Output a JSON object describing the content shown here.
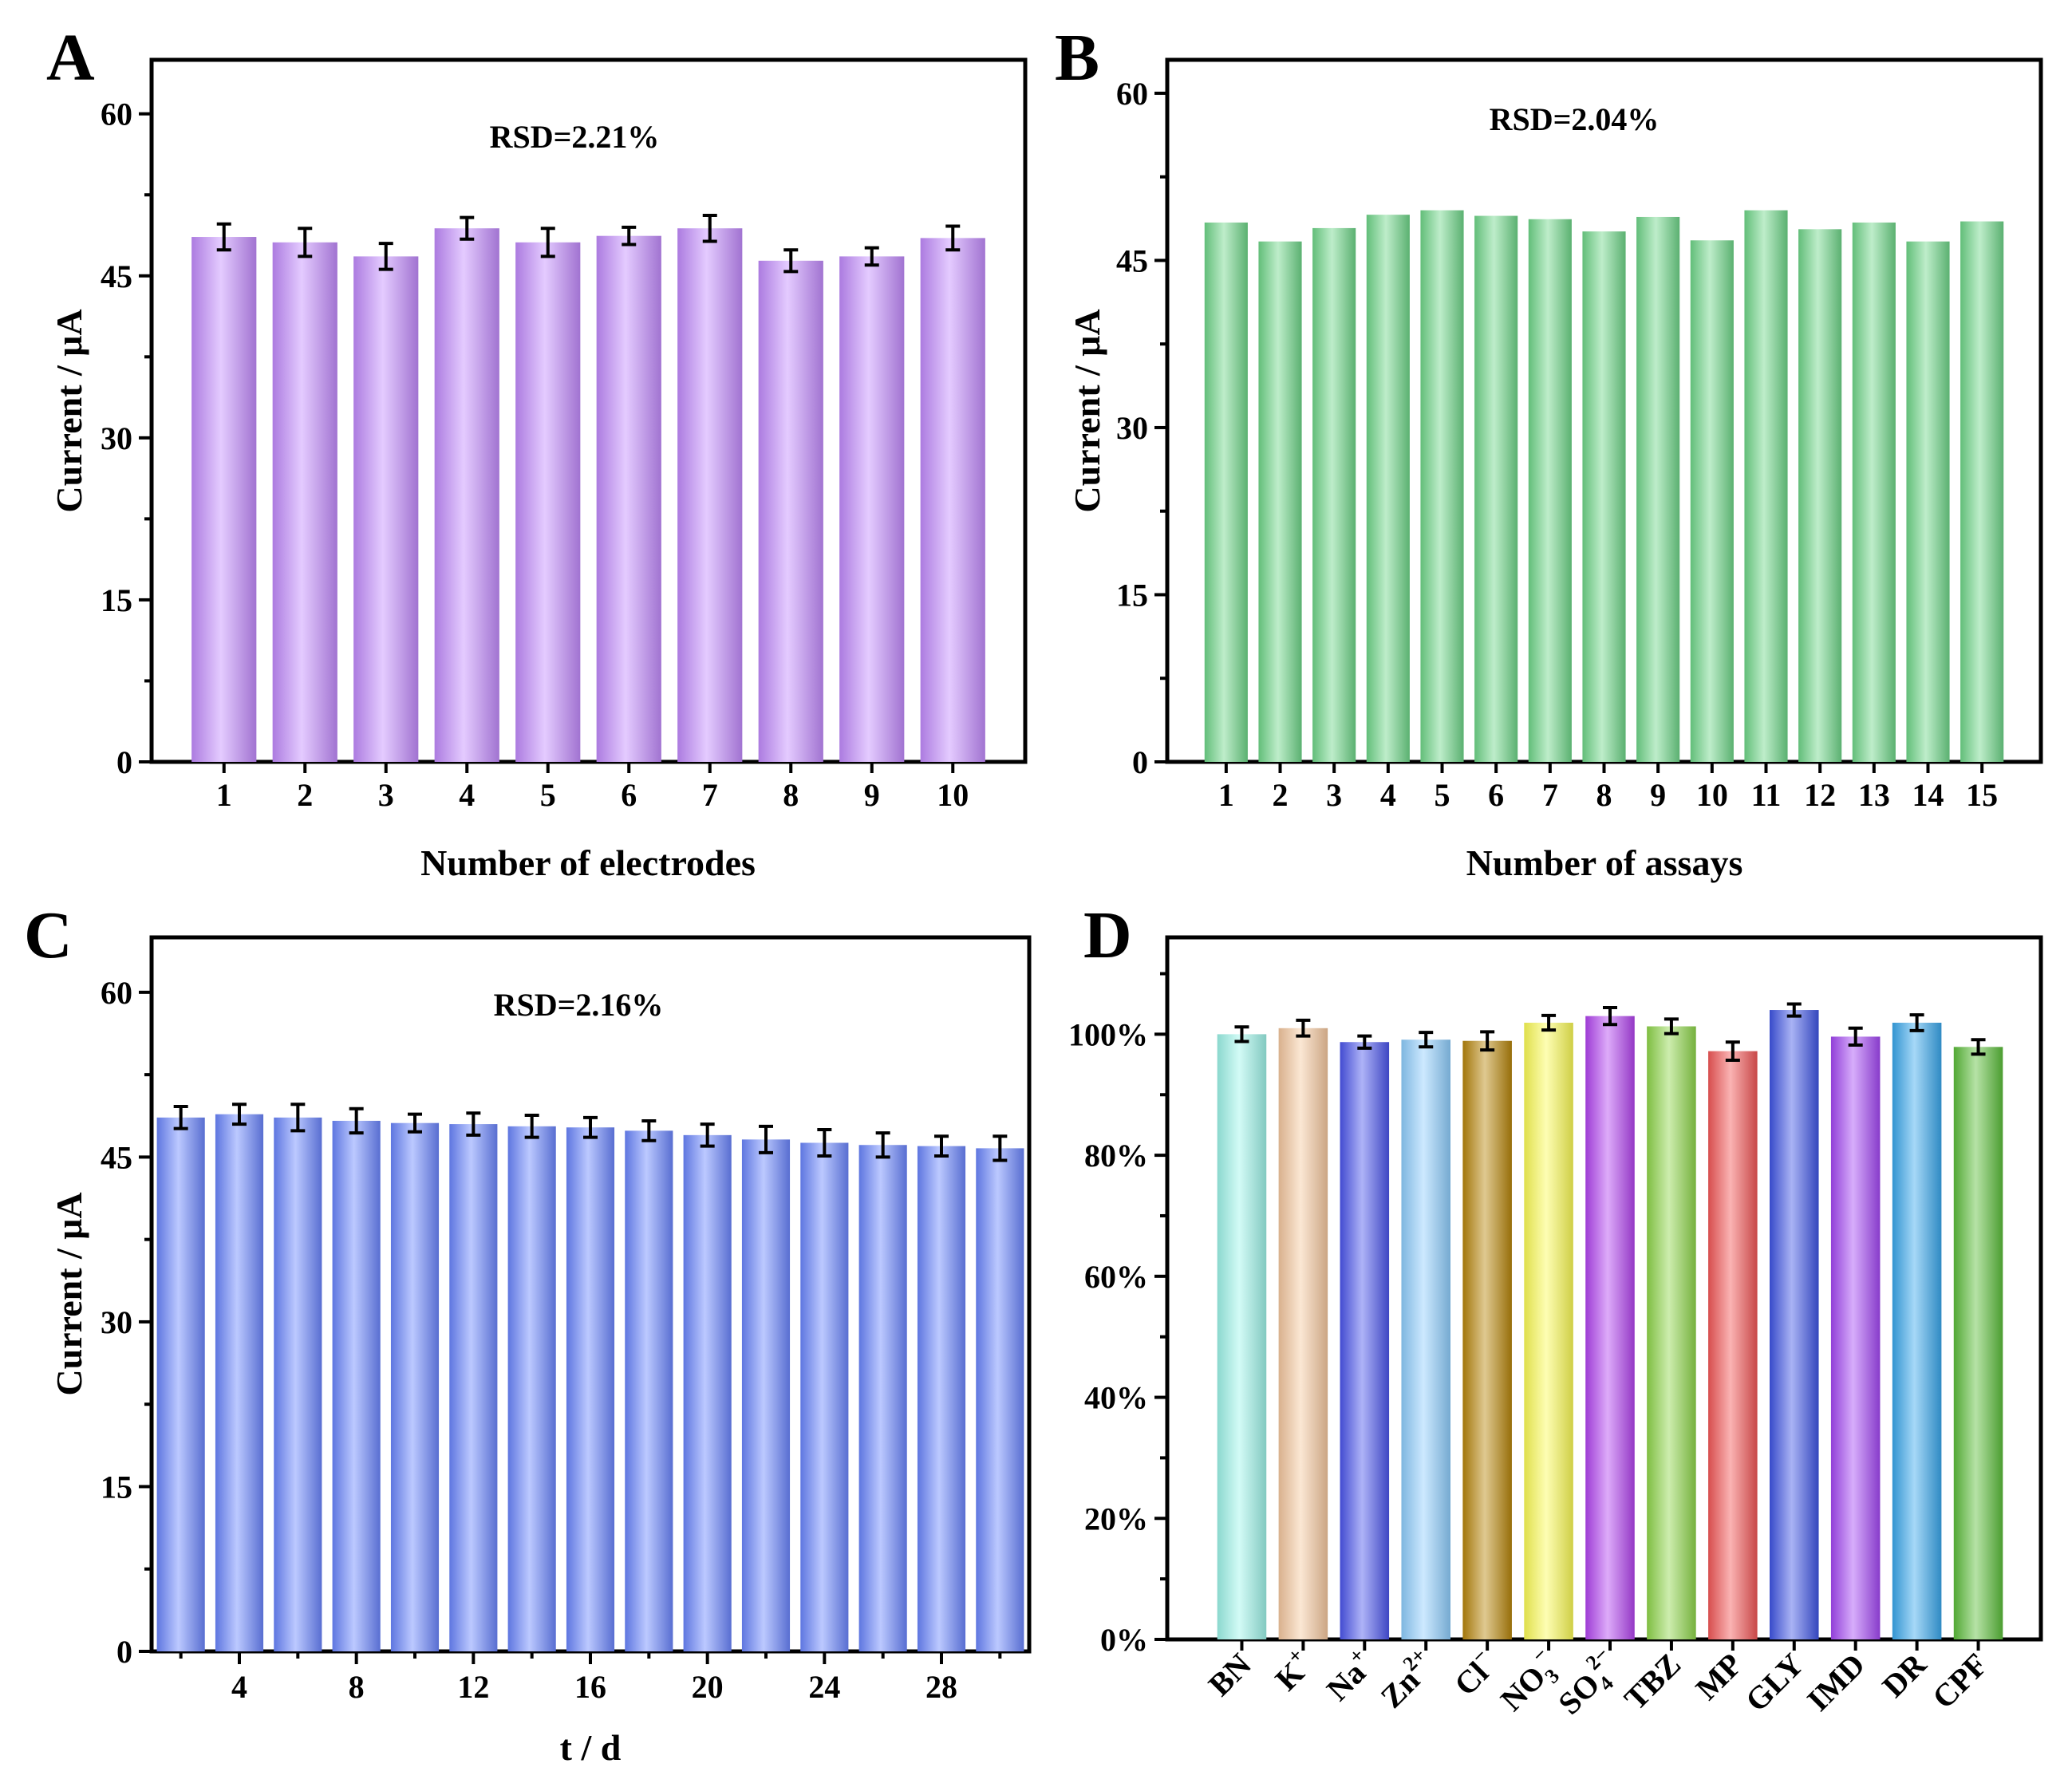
{
  "chart_data": [
    {
      "panel": "A",
      "type": "bar",
      "color": "#c48cff",
      "xlabel": "Number of electrodes",
      "ylabel": "Current / μA",
      "annotation": "RSD=2.21%",
      "ylim": [
        0,
        65
      ],
      "yticks": [
        "0",
        "15",
        "30",
        "45",
        "60"
      ],
      "categories": [
        "1",
        "2",
        "3",
        "4",
        "5",
        "6",
        "7",
        "8",
        "9",
        "10"
      ],
      "values": [
        48.6,
        48.1,
        46.8,
        49.4,
        48.1,
        48.7,
        49.4,
        46.4,
        46.8,
        48.5
      ],
      "errors": [
        1.2,
        1.3,
        1.2,
        1.0,
        1.3,
        0.8,
        1.2,
        1.0,
        0.8,
        1.1
      ]
    },
    {
      "panel": "B",
      "type": "bar",
      "color": "#6fd88a",
      "xlabel": "Number of assays",
      "ylabel": "Current / μA",
      "annotation": "RSD=2.04%",
      "ylim": [
        0,
        63
      ],
      "yticks": [
        "0",
        "15",
        "30",
        "45",
        "60"
      ],
      "categories": [
        "1",
        "2",
        "3",
        "4",
        "5",
        "6",
        "7",
        "8",
        "9",
        "10",
        "11",
        "12",
        "13",
        "14",
        "15"
      ],
      "values": [
        48.4,
        46.7,
        47.9,
        49.1,
        49.5,
        49.0,
        48.7,
        47.6,
        48.9,
        46.8,
        49.5,
        47.8,
        48.4,
        46.7,
        48.5
      ],
      "errors": []
    },
    {
      "panel": "C",
      "type": "bar",
      "color": "#6b86ff",
      "xlabel": "t / d",
      "ylabel": "Current / μA",
      "annotation": "RSD=2.16%",
      "ylim": [
        0,
        65
      ],
      "yticks": [
        "0",
        "15",
        "30",
        "45",
        "60"
      ],
      "x": [
        2,
        4,
        6,
        8,
        10,
        12,
        14,
        16,
        18,
        20,
        22,
        24,
        26,
        28,
        30
      ],
      "xticks": [
        "4",
        "8",
        "12",
        "16",
        "20",
        "24",
        "28"
      ],
      "xtick_values": [
        4,
        8,
        12,
        16,
        20,
        24,
        28
      ],
      "values": [
        48.6,
        48.9,
        48.6,
        48.3,
        48.1,
        48.0,
        47.8,
        47.7,
        47.4,
        47.0,
        46.6,
        46.3,
        46.1,
        46.0,
        45.8
      ],
      "errors": [
        1.0,
        0.9,
        1.2,
        1.1,
        0.8,
        1.0,
        1.0,
        0.9,
        0.9,
        1.0,
        1.2,
        1.2,
        1.1,
        0.9,
        1.1
      ]
    },
    {
      "panel": "D",
      "type": "bar",
      "xlabel": "",
      "ylabel": "",
      "annotation": "",
      "ylim": [
        0,
        116
      ],
      "yticks": [
        "0%",
        "20%",
        "40%",
        "60%",
        "80%",
        "100%"
      ],
      "categories": [
        {
          "base": "BN",
          "sup": "",
          "sub": ""
        },
        {
          "base": "K",
          "sup": "+",
          "sub": ""
        },
        {
          "base": "Na",
          "sup": "+",
          "sub": ""
        },
        {
          "base": "Zn",
          "sup": "2+",
          "sub": ""
        },
        {
          "base": "Cl",
          "sup": "−",
          "sub": ""
        },
        {
          "base": "NO",
          "sup": "−",
          "sub": "3"
        },
        {
          "base": "SO",
          "sup": "2−",
          "sub": "4"
        },
        {
          "base": "TBZ",
          "sup": "",
          "sub": ""
        },
        {
          "base": "MP",
          "sup": "",
          "sub": ""
        },
        {
          "base": "GLY",
          "sup": "",
          "sub": ""
        },
        {
          "base": "IMD",
          "sup": "",
          "sub": ""
        },
        {
          "base": "DR",
          "sup": "",
          "sub": ""
        },
        {
          "base": "CPF",
          "sup": "",
          "sub": ""
        }
      ],
      "values": [
        100.0,
        101.0,
        98.7,
        99.1,
        98.9,
        101.9,
        103.0,
        101.3,
        97.2,
        104.0,
        99.6,
        101.9,
        97.9
      ],
      "errors": [
        1.2,
        1.3,
        1.0,
        1.2,
        1.5,
        1.2,
        1.4,
        1.2,
        1.5,
        1.0,
        1.4,
        1.3,
        1.2
      ],
      "colors": [
        "#9ef5ea",
        "#f7c9a0",
        "#4b55ee",
        "#8fcfff",
        "#b8860b",
        "#fdfd55",
        "#b444f2",
        "#8fd84a",
        "#f45757",
        "#4055e6",
        "#a548f6",
        "#39a8ee",
        "#5cbf3a"
      ]
    }
  ]
}
